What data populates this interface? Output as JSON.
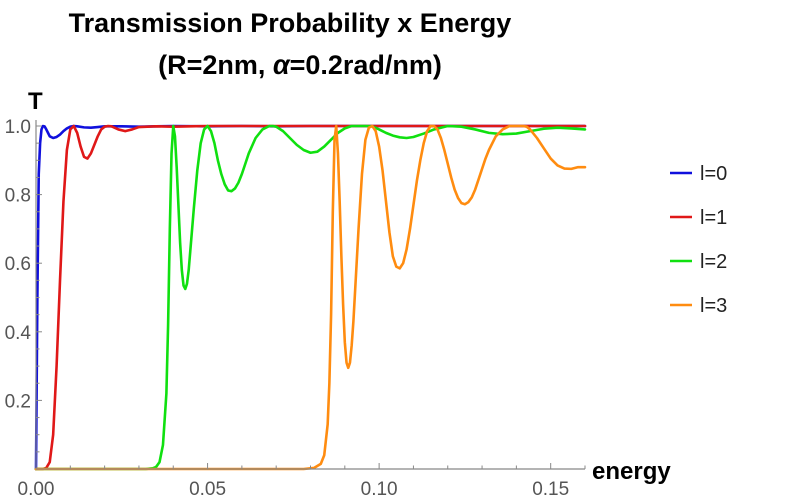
{
  "chart_data": {
    "type": "line",
    "title_line1": "Transmission Probability x Energy",
    "title_line2_prefix": "(R=2nm, ",
    "title_line2_symbol": "α",
    "title_line2_suffix": "=0.2rad/nm)",
    "xlabel": "energy",
    "ylabel": "T",
    "xlim": [
      0,
      0.16
    ],
    "ylim": [
      0,
      1.0
    ],
    "xticks": [
      {
        "value": 0.0,
        "label": "0.00"
      },
      {
        "value": 0.05,
        "label": "0.05"
      },
      {
        "value": 0.1,
        "label": "0.10"
      },
      {
        "value": 0.15,
        "label": "0.15"
      }
    ],
    "yticks": [
      {
        "value": 0.2,
        "label": "0.2"
      },
      {
        "value": 0.4,
        "label": "0.4"
      },
      {
        "value": 0.6,
        "label": "0.6"
      },
      {
        "value": 0.8,
        "label": "0.8"
      },
      {
        "value": 1.0,
        "label": "1.0"
      }
    ],
    "legend_position": "right",
    "series": [
      {
        "name": "l=0",
        "color": "#1010dd",
        "x": [
          0,
          0.0004,
          0.0008,
          0.0012,
          0.0016,
          0.002,
          0.0025,
          0.003,
          0.0035,
          0.004,
          0.005,
          0.006,
          0.007,
          0.008,
          0.009,
          0.01,
          0.011,
          0.012,
          0.014,
          0.016,
          0.018,
          0.02,
          0.025,
          0.03,
          0.035,
          0.04,
          0.05,
          0.06,
          0.07,
          0.08,
          0.1,
          0.12,
          0.14,
          0.16
        ],
        "values": [
          0,
          0.5,
          0.86,
          0.95,
          0.99,
          1.0,
          0.999,
          0.99,
          0.98,
          0.97,
          0.965,
          0.968,
          0.975,
          0.985,
          0.993,
          0.998,
          1.0,
          0.999,
          0.996,
          0.995,
          0.997,
          0.999,
          0.999,
          0.998,
          0.999,
          1.0,
          0.999,
          1.0,
          0.999,
          1.0,
          1.0,
          1.0,
          1.0,
          1.0
        ]
      },
      {
        "name": "l=1",
        "color": "#e01818",
        "x": [
          0,
          0.002,
          0.003,
          0.004,
          0.005,
          0.006,
          0.007,
          0.008,
          0.009,
          0.01,
          0.011,
          0.012,
          0.013,
          0.014,
          0.015,
          0.016,
          0.017,
          0.018,
          0.019,
          0.02,
          0.021,
          0.022,
          0.024,
          0.026,
          0.028,
          0.03,
          0.035,
          0.04,
          0.045,
          0.05,
          0.06,
          0.07,
          0.08,
          0.1,
          0.12,
          0.14,
          0.16
        ],
        "values": [
          0,
          0,
          0.003,
          0.02,
          0.1,
          0.3,
          0.55,
          0.78,
          0.93,
          0.99,
          1.0,
          0.98,
          0.94,
          0.91,
          0.905,
          0.92,
          0.945,
          0.97,
          0.99,
          0.998,
          1.0,
          0.999,
          0.99,
          0.985,
          0.99,
          0.997,
          0.999,
          0.998,
          0.999,
          1.0,
          1.0,
          1.0,
          1.0,
          1.0,
          1.0,
          1.0,
          1.0
        ]
      },
      {
        "name": "l=2",
        "color": "#10e010",
        "x": [
          0,
          0.032,
          0.034,
          0.035,
          0.036,
          0.037,
          0.038,
          0.0385,
          0.039,
          0.0395,
          0.04,
          0.0405,
          0.041,
          0.0415,
          0.042,
          0.0425,
          0.043,
          0.0435,
          0.044,
          0.0445,
          0.045,
          0.046,
          0.047,
          0.048,
          0.049,
          0.05,
          0.051,
          0.052,
          0.053,
          0.054,
          0.055,
          0.056,
          0.057,
          0.058,
          0.059,
          0.06,
          0.061,
          0.062,
          0.064,
          0.066,
          0.068,
          0.069,
          0.07,
          0.072,
          0.074,
          0.076,
          0.078,
          0.08,
          0.082,
          0.084,
          0.086,
          0.088,
          0.09,
          0.092,
          0.094,
          0.096,
          0.098,
          0.1,
          0.102,
          0.104,
          0.106,
          0.108,
          0.11,
          0.113,
          0.116,
          0.12,
          0.124,
          0.128,
          0.132,
          0.136,
          0.14,
          0.144,
          0.148,
          0.152,
          0.156,
          0.16
        ],
        "values": [
          0,
          0,
          0.002,
          0.006,
          0.02,
          0.07,
          0.22,
          0.42,
          0.7,
          0.92,
          1.0,
          0.97,
          0.88,
          0.77,
          0.66,
          0.58,
          0.535,
          0.525,
          0.54,
          0.58,
          0.64,
          0.76,
          0.87,
          0.95,
          0.99,
          1.0,
          0.985,
          0.95,
          0.9,
          0.86,
          0.83,
          0.812,
          0.81,
          0.818,
          0.835,
          0.86,
          0.89,
          0.92,
          0.965,
          0.99,
          1.0,
          1.0,
          0.998,
          0.985,
          0.965,
          0.945,
          0.93,
          0.922,
          0.925,
          0.94,
          0.96,
          0.98,
          0.993,
          1.0,
          1.0,
          1.0,
          0.999,
          0.99,
          0.98,
          0.972,
          0.967,
          0.965,
          0.968,
          0.978,
          0.99,
          1.0,
          0.998,
          0.99,
          0.98,
          0.976,
          0.978,
          0.985,
          0.992,
          0.995,
          0.993,
          0.99
        ]
      },
      {
        "name": "l=3",
        "color": "#ff8c10",
        "x": [
          0,
          0.078,
          0.081,
          0.083,
          0.084,
          0.085,
          0.0855,
          0.086,
          0.0865,
          0.087,
          0.0875,
          0.088,
          0.0885,
          0.089,
          0.0895,
          0.09,
          0.0905,
          0.091,
          0.0915,
          0.092,
          0.0925,
          0.093,
          0.094,
          0.095,
          0.096,
          0.097,
          0.098,
          0.099,
          0.1,
          0.101,
          0.102,
          0.103,
          0.104,
          0.105,
          0.106,
          0.107,
          0.108,
          0.109,
          0.11,
          0.111,
          0.112,
          0.113,
          0.114,
          0.115,
          0.116,
          0.117,
          0.118,
          0.119,
          0.12,
          0.121,
          0.122,
          0.123,
          0.124,
          0.125,
          0.126,
          0.127,
          0.128,
          0.129,
          0.13,
          0.131,
          0.132,
          0.134,
          0.136,
          0.138,
          0.14,
          0.142,
          0.143,
          0.144,
          0.146,
          0.148,
          0.15,
          0.152,
          0.154,
          0.156,
          0.158,
          0.16
        ],
        "values": [
          0,
          0,
          0.003,
          0.015,
          0.04,
          0.13,
          0.25,
          0.45,
          0.75,
          0.96,
          1.0,
          0.92,
          0.78,
          0.62,
          0.48,
          0.37,
          0.31,
          0.295,
          0.31,
          0.36,
          0.43,
          0.52,
          0.7,
          0.86,
          0.96,
          0.995,
          1.0,
          0.985,
          0.94,
          0.87,
          0.78,
          0.69,
          0.62,
          0.59,
          0.585,
          0.6,
          0.64,
          0.7,
          0.77,
          0.84,
          0.9,
          0.95,
          0.985,
          1.0,
          1.0,
          0.99,
          0.965,
          0.93,
          0.89,
          0.85,
          0.815,
          0.79,
          0.775,
          0.772,
          0.778,
          0.792,
          0.815,
          0.845,
          0.875,
          0.905,
          0.93,
          0.97,
          0.99,
          1.0,
          1.0,
          1.0,
          0.998,
          0.99,
          0.965,
          0.935,
          0.905,
          0.885,
          0.876,
          0.875,
          0.88,
          0.88
        ]
      }
    ]
  }
}
